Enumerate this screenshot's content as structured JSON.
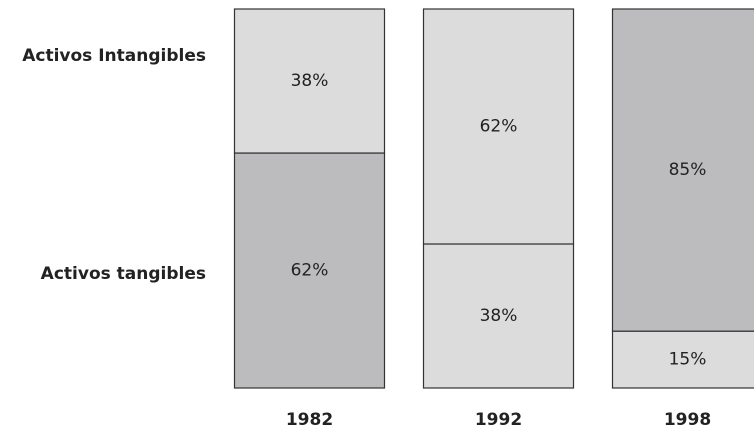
{
  "chart_data": {
    "type": "stacked-bar",
    "categories": [
      "1982",
      "1992",
      "1998"
    ],
    "ylim": [
      0,
      100
    ],
    "series": [
      {
        "name": "Activos tangibles",
        "values": [
          62,
          38,
          15
        ],
        "value_labels": [
          "62%",
          "38%",
          "15%"
        ],
        "colors": [
          "#bcbcbe",
          "#dcdcdd",
          "#dcdcdd"
        ]
      },
      {
        "name": "Activos Intangibles",
        "values": [
          38,
          62,
          85
        ],
        "value_labels": [
          "38%",
          "62%",
          "85%"
        ],
        "colors": [
          "#dcdcdd",
          "#dcdcdd",
          "#bcbcbe"
        ]
      }
    ]
  }
}
